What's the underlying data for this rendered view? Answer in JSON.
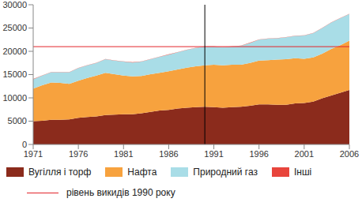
{
  "chart_data": {
    "type": "area",
    "stacked": true,
    "grid": false,
    "legend": "bottom",
    "x": [
      1971,
      1972,
      1973,
      1974,
      1975,
      1976,
      1977,
      1978,
      1979,
      1980,
      1981,
      1982,
      1983,
      1984,
      1985,
      1986,
      1987,
      1988,
      1989,
      1990,
      1991,
      1992,
      1993,
      1994,
      1995,
      1996,
      1997,
      1998,
      1999,
      2000,
      2001,
      2002,
      2003,
      2004,
      2005,
      2006
    ],
    "xlim": [
      1971,
      2006
    ],
    "xticks": [
      1971,
      1976,
      1981,
      1986,
      1991,
      1996,
      2001,
      2006
    ],
    "ylim": [
      0,
      30000
    ],
    "yticks": [
      0,
      5000,
      10000,
      15000,
      20000,
      25000,
      30000
    ],
    "series": [
      {
        "name": "Вугілля і торф",
        "color": "#8b2b1c",
        "values": [
          5000,
          5100,
          5300,
          5300,
          5400,
          5700,
          5900,
          6000,
          6300,
          6400,
          6500,
          6500,
          6700,
          7000,
          7300,
          7400,
          7700,
          7900,
          8000,
          8100,
          8000,
          7900,
          8000,
          8100,
          8300,
          8600,
          8600,
          8500,
          8500,
          8800,
          8900,
          9200,
          9900,
          10500,
          11100,
          11700
        ]
      },
      {
        "name": "Нафта",
        "color": "#f7a23e",
        "values": [
          7000,
          7600,
          8000,
          7900,
          7600,
          8000,
          8400,
          8800,
          9100,
          8700,
          8300,
          8100,
          8000,
          8100,
          8100,
          8300,
          8400,
          8600,
          8800,
          8900,
          9100,
          9100,
          9100,
          9000,
          9200,
          9400,
          9500,
          9700,
          9800,
          9700,
          9500,
          9500,
          9600,
          10000,
          10200,
          10600
        ]
      },
      {
        "name": "Природний газ",
        "color": "#a9dde7",
        "values": [
          2000,
          2100,
          2200,
          2300,
          2500,
          2700,
          2700,
          2700,
          2900,
          2900,
          3000,
          3000,
          3100,
          3200,
          3400,
          3600,
          3700,
          3800,
          3900,
          4000,
          3900,
          3900,
          3900,
          4100,
          4300,
          4500,
          4600,
          4600,
          4700,
          4800,
          5000,
          5200,
          5500,
          5700,
          5800,
          5700
        ]
      },
      {
        "name": "Інші",
        "color": "#e8453c",
        "values": [
          50,
          50,
          50,
          50,
          50,
          50,
          50,
          50,
          50,
          50,
          50,
          50,
          50,
          50,
          50,
          50,
          50,
          50,
          50,
          50,
          50,
          50,
          50,
          50,
          50,
          50,
          50,
          50,
          50,
          50,
          50,
          50,
          50,
          50,
          50,
          50
        ]
      }
    ],
    "reference_lines": [
      {
        "axis": "y",
        "value": 21000,
        "color": "#e3242b",
        "label": "рівень викидів 1990 року"
      },
      {
        "axis": "x",
        "value": 1990,
        "color": "#000000"
      }
    ]
  }
}
